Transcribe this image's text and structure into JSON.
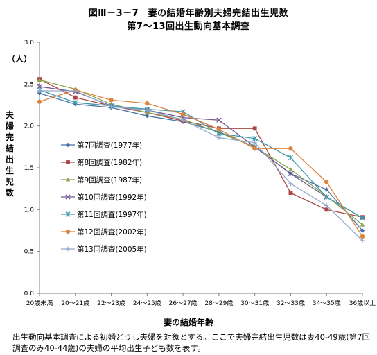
{
  "title_line1": "図Ⅲ－3－7　妻の結婚年齢別夫婦完結出生児数",
  "title_line2": "第7～13回出生動向基本調査",
  "unit_label": "（人）",
  "note": "出生動向基本調査による初婚どうし夫婦を対象とする。ここで夫婦完結出生児数は妻40-49歳(第7回調査のみ40-44歳)の夫婦の平均出生子ども数を表す。",
  "chart_data": {
    "type": "line",
    "ylabel": "夫婦完結出生児数",
    "xlabel": "妻の結婚年齢",
    "ylim": [
      0,
      3.0
    ],
    "yticks": [
      "0.0",
      "0.5",
      "1.0",
      "1.5",
      "2.0",
      "2.5",
      "3.0"
    ],
    "categories": [
      "20歳未満",
      "20～21歳",
      "22～23歳",
      "24～25歳",
      "26～27歳",
      "28～29歳",
      "30～31歳",
      "32～33歳",
      "34～35歳",
      "36歳以上"
    ],
    "legend_position": "left",
    "series": [
      {
        "name": "第7回調査(1977年)",
        "color": "#4572a7",
        "marker": "diamond",
        "values": [
          2.39,
          2.26,
          2.22,
          2.12,
          2.05,
          1.93,
          1.75,
          1.43,
          1.24,
          0.75
        ]
      },
      {
        "name": "第8回調査(1982年)",
        "color": "#aa4643",
        "marker": "square",
        "values": [
          2.56,
          2.34,
          2.24,
          2.16,
          2.06,
          1.97,
          1.97,
          1.2,
          1.0,
          0.91
        ]
      },
      {
        "name": "第9回調査(1987年)",
        "color": "#89a54e",
        "marker": "triangle",
        "values": [
          2.55,
          2.44,
          2.26,
          2.16,
          2.08,
          1.92,
          1.75,
          1.48,
          1.16,
          0.82
        ]
      },
      {
        "name": "第10回調査(1992年)",
        "color": "#71588f",
        "marker": "x",
        "values": [
          2.47,
          2.41,
          2.24,
          2.19,
          2.1,
          2.07,
          1.75,
          1.43,
          1.15,
          0.9
        ]
      },
      {
        "name": "第11回調査(1997年)",
        "color": "#4198af",
        "marker": "star",
        "values": [
          2.43,
          2.28,
          2.24,
          2.2,
          2.17,
          1.91,
          1.85,
          1.62,
          1.15,
          0.9
        ]
      },
      {
        "name": "第12回調査(2002年)",
        "color": "#db843d",
        "marker": "circle",
        "values": [
          2.29,
          2.43,
          2.31,
          2.27,
          2.14,
          1.96,
          1.73,
          1.73,
          1.33,
          0.68
        ]
      },
      {
        "name": "第13回調査(2005年)",
        "color": "#93a9cf",
        "marker": "plus",
        "values": [
          2.42,
          2.42,
          2.23,
          2.19,
          2.07,
          1.86,
          1.8,
          1.31,
          1.05,
          0.63
        ]
      }
    ]
  }
}
